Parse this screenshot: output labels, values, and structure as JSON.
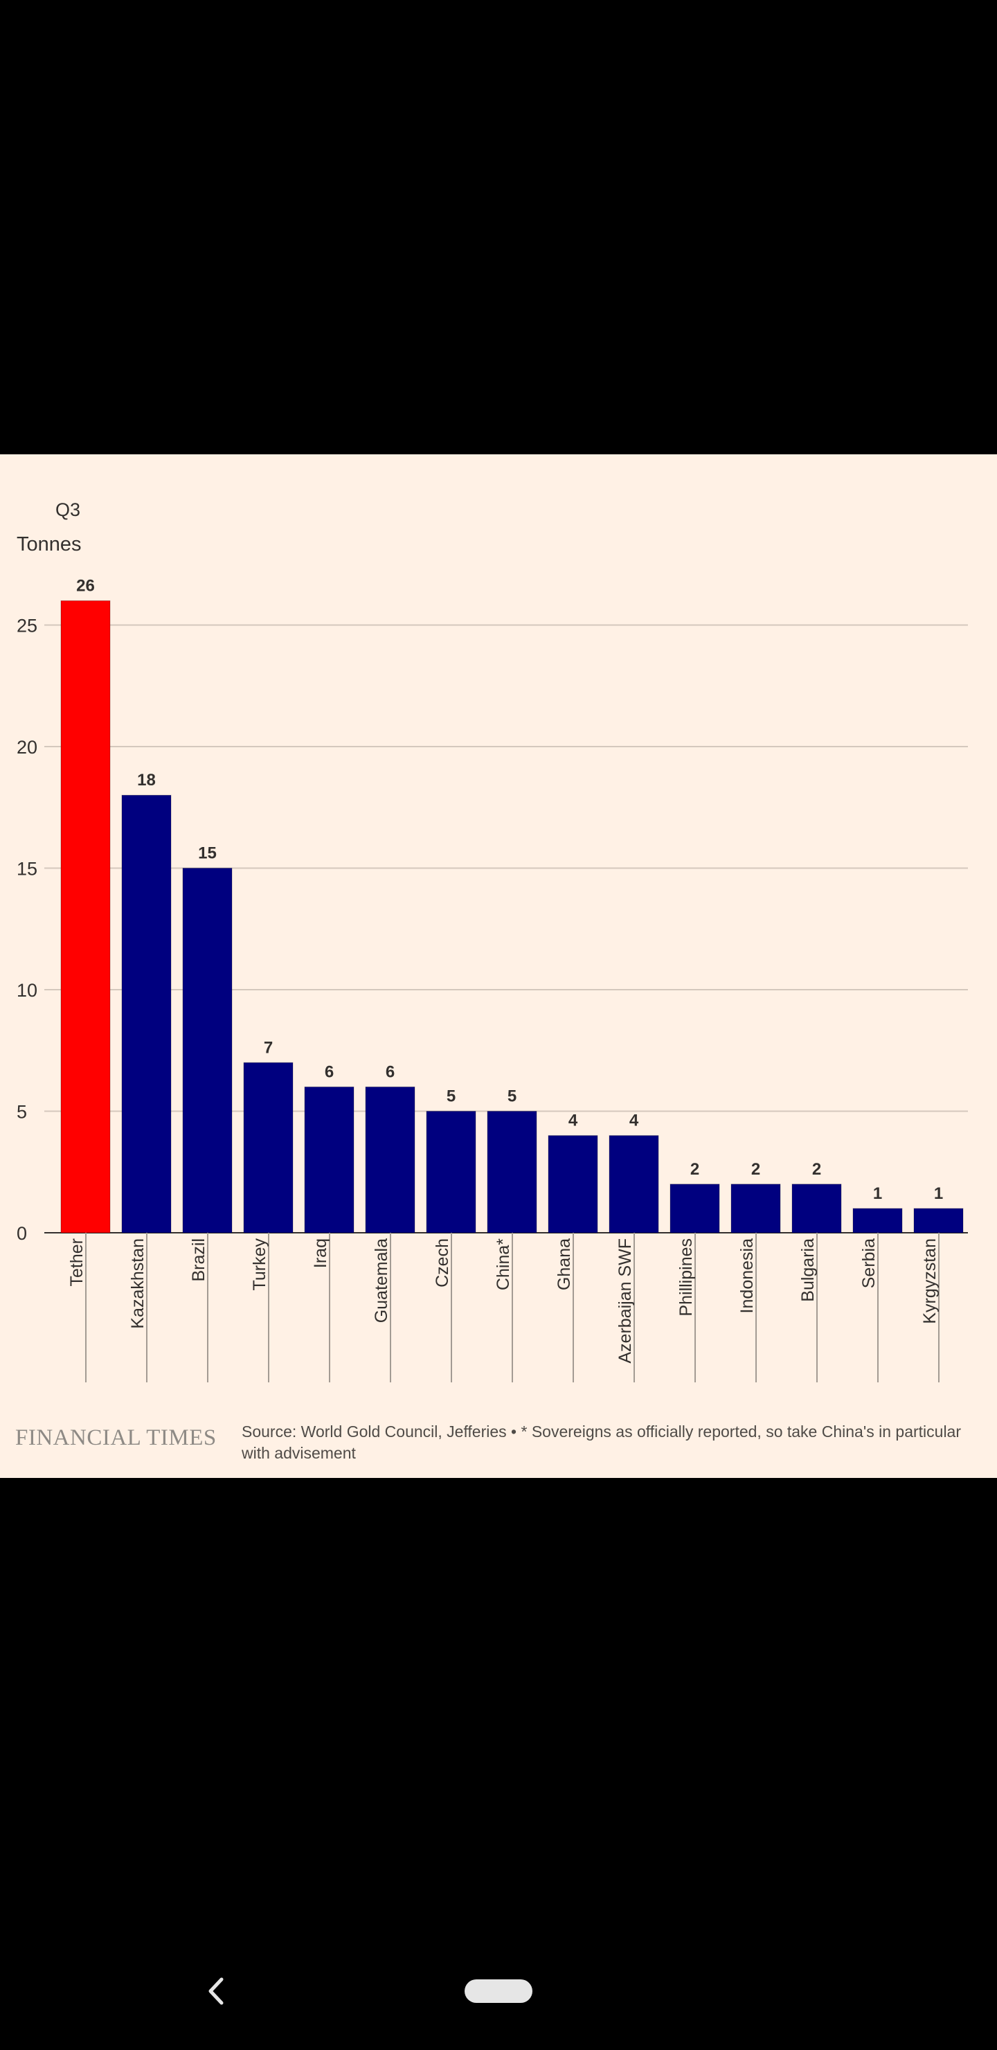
{
  "chart_data": {
    "type": "bar",
    "title": "Q3",
    "xlabel": "",
    "ylabel": "Tonnes",
    "ylim": [
      0,
      26
    ],
    "yticks": [
      0,
      5,
      10,
      15,
      20,
      25
    ],
    "grid": true,
    "categories": [
      "Tether",
      "Kazakhstan",
      "Brazil",
      "Turkey",
      "Iraq",
      "Guatemala",
      "Czech",
      "China*",
      "Ghana",
      "Azerbaijan SWF",
      "Phillipines",
      "Indonesia",
      "Bulgaria",
      "Serbia",
      "Kyrgyzstan"
    ],
    "values": [
      26,
      18,
      15,
      7,
      6,
      6,
      5,
      5,
      4,
      4,
      2,
      2,
      2,
      1,
      1
    ],
    "highlight_index": 0,
    "colors": {
      "highlight": "#ff0000",
      "bar": "#00007f",
      "grid": "#d4c8bd",
      "axis": "#33302e"
    }
  },
  "footer": {
    "brand": "FINANCIAL TIMES",
    "source": "Source: World Gold Council, Jefferies • * Sovereigns as officially reported, so take China's in particular with advisement"
  },
  "nav": {
    "back_icon": "chevron-left-icon",
    "home_icon": "home-pill-icon"
  }
}
